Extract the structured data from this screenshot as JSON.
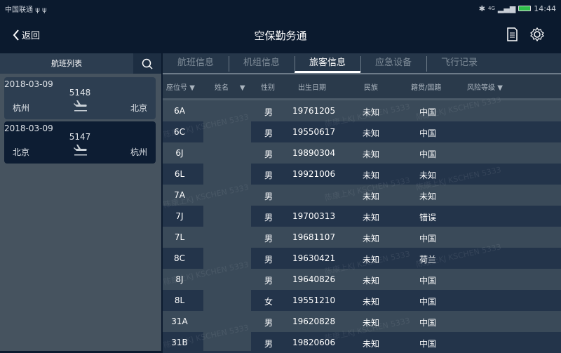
{
  "status": {
    "carrier": "中国联通",
    "usb": "ψ ψ",
    "network": "4G",
    "time": "14:44"
  },
  "header": {
    "back": "返回",
    "title": "空保勤务通"
  },
  "sidebar": {
    "title": "航班列表",
    "flights": [
      {
        "date": "2018-03-09",
        "number": "5148",
        "from": "杭州",
        "to": "北京",
        "selected": false
      },
      {
        "date": "2018-03-09",
        "number": "5147",
        "from": "北京",
        "to": "杭州",
        "selected": true
      }
    ]
  },
  "tabs": [
    {
      "label": "航班信息"
    },
    {
      "label": "机组信息"
    },
    {
      "label": "旅客信息",
      "active": true
    },
    {
      "label": "应急设备"
    },
    {
      "label": "飞行记录"
    }
  ],
  "columns": {
    "seat": "座位号",
    "name": "姓名",
    "gender": "性别",
    "birth": "出生日期",
    "ethnicity": "民族",
    "nationality": "籍贯/国籍",
    "risk": "风险等级"
  },
  "rows": [
    {
      "seat": "6A",
      "gender": "男",
      "birth": "19761205",
      "ethnicity": "未知",
      "nationality": "中国"
    },
    {
      "seat": "6C",
      "gender": "男",
      "birth": "19550617",
      "ethnicity": "未知",
      "nationality": "中国"
    },
    {
      "seat": "6J",
      "gender": "男",
      "birth": "19890304",
      "ethnicity": "未知",
      "nationality": "中国"
    },
    {
      "seat": "6L",
      "gender": "男",
      "birth": "19921006",
      "ethnicity": "未知",
      "nationality": "未知"
    },
    {
      "seat": "7A",
      "gender": "男",
      "birth": "",
      "ethnicity": "未知",
      "nationality": "未知"
    },
    {
      "seat": "7J",
      "gender": "男",
      "birth": "19700313",
      "ethnicity": "未知",
      "nationality": "错误"
    },
    {
      "seat": "7L",
      "gender": "男",
      "birth": "19681107",
      "ethnicity": "未知",
      "nationality": "中国"
    },
    {
      "seat": "8C",
      "gender": "男",
      "birth": "19630421",
      "ethnicity": "未知",
      "nationality": "荷兰"
    },
    {
      "seat": "8J",
      "gender": "男",
      "birth": "19640826",
      "ethnicity": "未知",
      "nationality": "中国"
    },
    {
      "seat": "8L",
      "gender": "女",
      "birth": "19551210",
      "ethnicity": "未知",
      "nationality": "中国"
    },
    {
      "seat": "31A",
      "gender": "男",
      "birth": "19620828",
      "ethnicity": "未知",
      "nationality": "中国"
    },
    {
      "seat": "31B",
      "gender": "男",
      "birth": "19820606",
      "ethnicity": "未知",
      "nationality": "中国"
    }
  ],
  "watermark": "陈康上KJ KSCHEN 5333",
  "colors": {
    "background": "#0b1a2e",
    "battery": "#2fbf4a"
  }
}
